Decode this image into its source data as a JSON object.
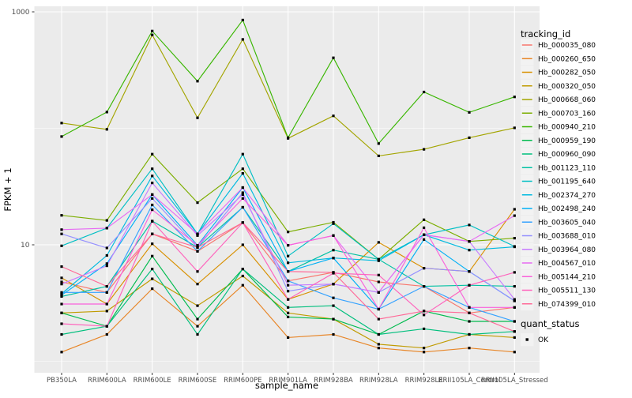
{
  "figure": {
    "y_axis_title": "FPKM + 1",
    "x_axis_title": "sample_name",
    "legend_title": "tracking_id",
    "quant_legend_title": "quant_status",
    "quant_status_label": "OK",
    "colors": {
      "panel_bg": "#EBEBEB",
      "gridline": "#FFFFFF",
      "point": "#000000",
      "tick_text": "#4D4D4D",
      "title_text": "#000000",
      "legend_key_bg": "#F2F2F2",
      "tick_mark": "#333333"
    }
  },
  "chart_data": {
    "type": "line",
    "title": "",
    "xlabel": "sample_name",
    "ylabel": "FPKM + 1",
    "y_scale": "log10",
    "ylim": [
      1,
      1000
    ],
    "grid": true,
    "legend_position": "right",
    "point_shape": "small black square",
    "y_tick_labels": [
      {
        "value": 10,
        "label": "10"
      },
      {
        "value": 1000,
        "label": "1000"
      }
    ],
    "y_major_gridline_values": [
      10,
      1000
    ],
    "y_minor_gridline_values": [
      1,
      100
    ],
    "categories": [
      "PB350LA",
      "RRIM600LA",
      "RRIM600LE",
      "RRIM600SE",
      "RRIM600PE",
      "RRIM901LA",
      "RRIM928BA",
      "RRIM928LA",
      "RRIM928LE",
      "RRII105LA_Control",
      "RRII105LA_Stressed"
    ],
    "quant_status": "OK",
    "series": [
      {
        "name": "Hb_000035_080",
        "color": "#F8766D",
        "values": [
          4.8,
          3.9,
          12.4,
          8.8,
          15.5,
          4.9,
          5.8,
          4.8,
          4.4,
          2.6,
          2.9
        ]
      },
      {
        "name": "Hb_000260_650",
        "color": "#E88526",
        "values": [
          1.2,
          1.7,
          4.2,
          2.0,
          4.5,
          1.6,
          1.7,
          1.3,
          1.2,
          1.3,
          1.2
        ]
      },
      {
        "name": "Hb_000282_050",
        "color": "#D89000",
        "values": [
          5.2,
          3.1,
          10.2,
          4.6,
          10.0,
          3.4,
          4.6,
          10.5,
          6.3,
          5.9,
          20.2
        ]
      },
      {
        "name": "Hb_000320_050",
        "color": "#C09B00",
        "values": [
          2.6,
          2.7,
          5.1,
          3.0,
          5.4,
          2.6,
          2.3,
          1.4,
          1.3,
          1.7,
          1.6
        ]
      },
      {
        "name": "Hb_000668_060",
        "color": "#A3A500",
        "values": [
          111,
          98,
          634,
          123,
          580,
          82,
          128,
          58,
          66,
          83,
          101
        ]
      },
      {
        "name": "Hb_000703_160",
        "color": "#7CAE00",
        "values": [
          17.9,
          16.2,
          60,
          23,
          45,
          12.9,
          15.6,
          7.5,
          16.4,
          10.7,
          11.4
        ]
      },
      {
        "name": "Hb_000940_210",
        "color": "#39B600",
        "values": [
          85,
          138,
          684,
          254,
          850,
          83,
          403,
          74,
          205,
          137,
          186
        ]
      },
      {
        "name": "Hb_000959_190",
        "color": "#00BB4E",
        "values": [
          2.6,
          2.0,
          8.0,
          2.3,
          6.2,
          2.4,
          2.3,
          1.7,
          2.7,
          2.2,
          2.2
        ]
      },
      {
        "name": "Hb_000960_090",
        "color": "#00BF7D",
        "values": [
          1.7,
          2.0,
          6.2,
          1.7,
          6.2,
          2.9,
          3.0,
          1.7,
          1.9,
          1.7,
          1.8
        ]
      },
      {
        "name": "Hb_001123_110",
        "color": "#00C1A3",
        "values": [
          3.6,
          4.4,
          16,
          9.5,
          21,
          5.9,
          9.0,
          7.5,
          4.4,
          4.5,
          4.4
        ]
      },
      {
        "name": "Hb_001195_640",
        "color": "#00BFC4",
        "values": [
          9.8,
          13.9,
          45,
          12.4,
          60,
          8.0,
          15.2,
          7.5,
          12.2,
          14.8,
          9.7
        ]
      },
      {
        "name": "Hb_002374_270",
        "color": "#00BAE0",
        "values": [
          3.8,
          8.1,
          39,
          12.4,
          41,
          7.0,
          7.7,
          7.3,
          12.2,
          9.0,
          9.6
        ]
      },
      {
        "name": "Hb_002498_240",
        "color": "#00B0F6",
        "values": [
          3.7,
          6.9,
          27,
          9.9,
          31,
          5.9,
          7.7,
          2.8,
          11.1,
          5.9,
          3.3
        ]
      },
      {
        "name": "Hb_003605_040",
        "color": "#35A2FF",
        "values": [
          3.9,
          3.9,
          22,
          8.8,
          21,
          4.9,
          3.5,
          2.8,
          4.4,
          2.9,
          2.2
        ]
      },
      {
        "name": "Hb_003688_010",
        "color": "#9590FF",
        "values": [
          12.4,
          9.4,
          25,
          9.5,
          28,
          4.0,
          4.6,
          3.9,
          6.3,
          5.9,
          3.3
        ]
      },
      {
        "name": "Hb_003964_080",
        "color": "#C77CFF",
        "values": [
          4.6,
          6.6,
          34,
          12.0,
          27,
          4.5,
          4.6,
          3.9,
          12.2,
          10.7,
          3.4
        ]
      },
      {
        "name": "Hb_004567_010",
        "color": "#E76BF3",
        "values": [
          13.5,
          13.9,
          27,
          12.4,
          31,
          9.9,
          12.0,
          3.9,
          12.2,
          10.7,
          17.8
        ]
      },
      {
        "name": "Hb_005144_210",
        "color": "#FA62DB",
        "values": [
          3.1,
          3.1,
          20,
          9.9,
          25,
          9.9,
          12.0,
          2.8,
          14.0,
          2.9,
          2.9
        ]
      },
      {
        "name": "Hb_005511_130",
        "color": "#FF62BC",
        "values": [
          2.1,
          2.0,
          15.9,
          5.9,
          15.5,
          3.4,
          5.7,
          5.5,
          2.5,
          4.5,
          5.8
        ]
      },
      {
        "name": "Hb_074399_010",
        "color": "#FF6A98",
        "values": [
          6.5,
          4.4,
          12.4,
          9.5,
          15.5,
          5.9,
          5.8,
          2.3,
          2.7,
          2.6,
          1.8
        ]
      }
    ]
  }
}
